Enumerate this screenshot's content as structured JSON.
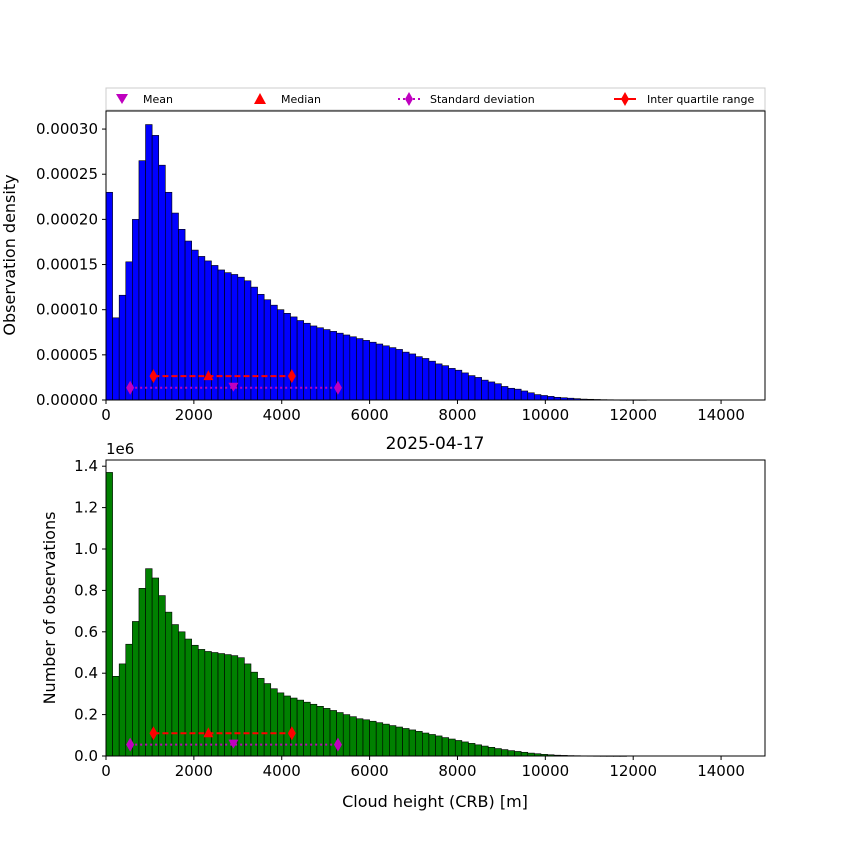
{
  "colors": {
    "top_bars": "#0000ff",
    "bottom_bars": "#008000",
    "mean": "#bf00bf",
    "median": "#ff0000",
    "std": "#bf00bf",
    "iqr": "#ff0000"
  },
  "legend": {
    "placement": "top",
    "items": [
      {
        "label": "Mean",
        "marker": "triangle-down-icon"
      },
      {
        "label": "Median",
        "marker": "triangle-up-icon"
      },
      {
        "label": "Standard deviation",
        "marker": "diamond-dotted-line-icon"
      },
      {
        "label": "Inter quartile range",
        "marker": "diamond-solid-line-icon"
      }
    ]
  },
  "chart_data": [
    {
      "type": "bar",
      "title": "",
      "xlabel": "",
      "ylabel": "Observation density",
      "xlim": [
        0,
        15000
      ],
      "ylim": [
        0,
        0.00032
      ],
      "xticks": [
        "0",
        "2000",
        "4000",
        "6000",
        "8000",
        "10000",
        "12000",
        "14000"
      ],
      "yticks": [
        "0.00000",
        "0.00005",
        "0.00010",
        "0.00015",
        "0.00020",
        "0.00025",
        "0.00030"
      ],
      "bin_width": 150,
      "values": [
        0.00023,
        9.1e-05,
        0.000116,
        0.000153,
        0.0002,
        0.000265,
        0.000305,
        0.000293,
        0.00026,
        0.00023,
        0.000207,
        0.000189,
        0.000176,
        0.000166,
        0.000159,
        0.000154,
        0.000149,
        0.000144,
        0.000141,
        0.000139,
        0.000136,
        0.000132,
        0.000125,
        0.000117,
        0.000111,
        0.000105,
        0.0001,
        9.6e-05,
        9.2e-05,
        8.8e-05,
        8.5e-05,
        8.2e-05,
        8e-05,
        7.8e-05,
        7.6e-05,
        7.4e-05,
        7.2e-05,
        7e-05,
        6.8e-05,
        6.6e-05,
        6.4e-05,
        6.2e-05,
        6e-05,
        5.8e-05,
        5.6e-05,
        5.3e-05,
        5.1e-05,
        4.8e-05,
        4.6e-05,
        4.3e-05,
        4e-05,
        3.8e-05,
        3.5e-05,
        3.3e-05,
        3e-05,
        2.7e-05,
        2.5e-05,
        2.2e-05,
        2e-05,
        1.8e-05,
        1.5e-05,
        1.3e-05,
        1.2e-05,
        1e-05,
        8e-06,
        6e-06,
        5e-06,
        4e-06,
        3e-06,
        2.5e-06,
        2e-06,
        1.5e-06,
        1e-06,
        8e-07,
        6e-07,
        4e-07,
        3e-07,
        2e-07,
        1e-07,
        1e-07,
        1e-07,
        1e-07,
        0,
        0,
        0,
        0,
        0,
        0,
        0,
        0,
        0,
        0,
        0,
        0,
        0,
        0,
        0,
        0,
        0,
        0
      ],
      "stats": {
        "mean": 2900,
        "median": 2330,
        "std_range": [
          550,
          5280
        ],
        "iqr_range": [
          1080,
          4230
        ],
        "marker_y_mean_std": 1.35e-05,
        "marker_y_median_iqr": 2.65e-05
      }
    },
    {
      "type": "bar",
      "title": "2025-04-17",
      "xlabel": "Cloud height (CRB) [m]",
      "ylabel": "Number of observations",
      "offset_label": "1e6",
      "xlim": [
        0,
        15000
      ],
      "ylim": [
        0,
        1.43
      ],
      "xticks": [
        "0",
        "2000",
        "4000",
        "6000",
        "8000",
        "10000",
        "12000",
        "14000"
      ],
      "yticks": [
        "0.0",
        "0.2",
        "0.4",
        "0.6",
        "0.8",
        "1.0",
        "1.2",
        "1.4"
      ],
      "bin_width": 150,
      "values": [
        1.37,
        0.385,
        0.445,
        0.54,
        0.65,
        0.81,
        0.905,
        0.86,
        0.775,
        0.695,
        0.635,
        0.6,
        0.565,
        0.535,
        0.515,
        0.505,
        0.5,
        0.495,
        0.49,
        0.485,
        0.475,
        0.445,
        0.405,
        0.375,
        0.35,
        0.325,
        0.305,
        0.29,
        0.28,
        0.27,
        0.26,
        0.25,
        0.24,
        0.23,
        0.22,
        0.21,
        0.2,
        0.19,
        0.18,
        0.175,
        0.168,
        0.161,
        0.154,
        0.147,
        0.14,
        0.133,
        0.126,
        0.119,
        0.111,
        0.104,
        0.097,
        0.089,
        0.082,
        0.075,
        0.068,
        0.061,
        0.054,
        0.048,
        0.042,
        0.036,
        0.031,
        0.026,
        0.022,
        0.018,
        0.014,
        0.011,
        0.008,
        0.006,
        0.004,
        0.003,
        0.002,
        0.0015,
        0.001,
        0.0008,
        0.0005,
        0.0003,
        0.0002,
        0.0001,
        0.0001,
        0,
        0,
        0,
        0,
        0,
        0,
        0,
        0,
        0,
        0,
        0,
        0,
        0,
        0,
        0,
        0,
        0,
        0,
        0,
        0,
        0
      ],
      "stats": {
        "mean": 2900,
        "median": 2330,
        "std_range": [
          550,
          5280
        ],
        "iqr_range": [
          1080,
          4230
        ],
        "marker_y_mean_std": 0.055,
        "marker_y_median_iqr": 0.11
      }
    }
  ]
}
